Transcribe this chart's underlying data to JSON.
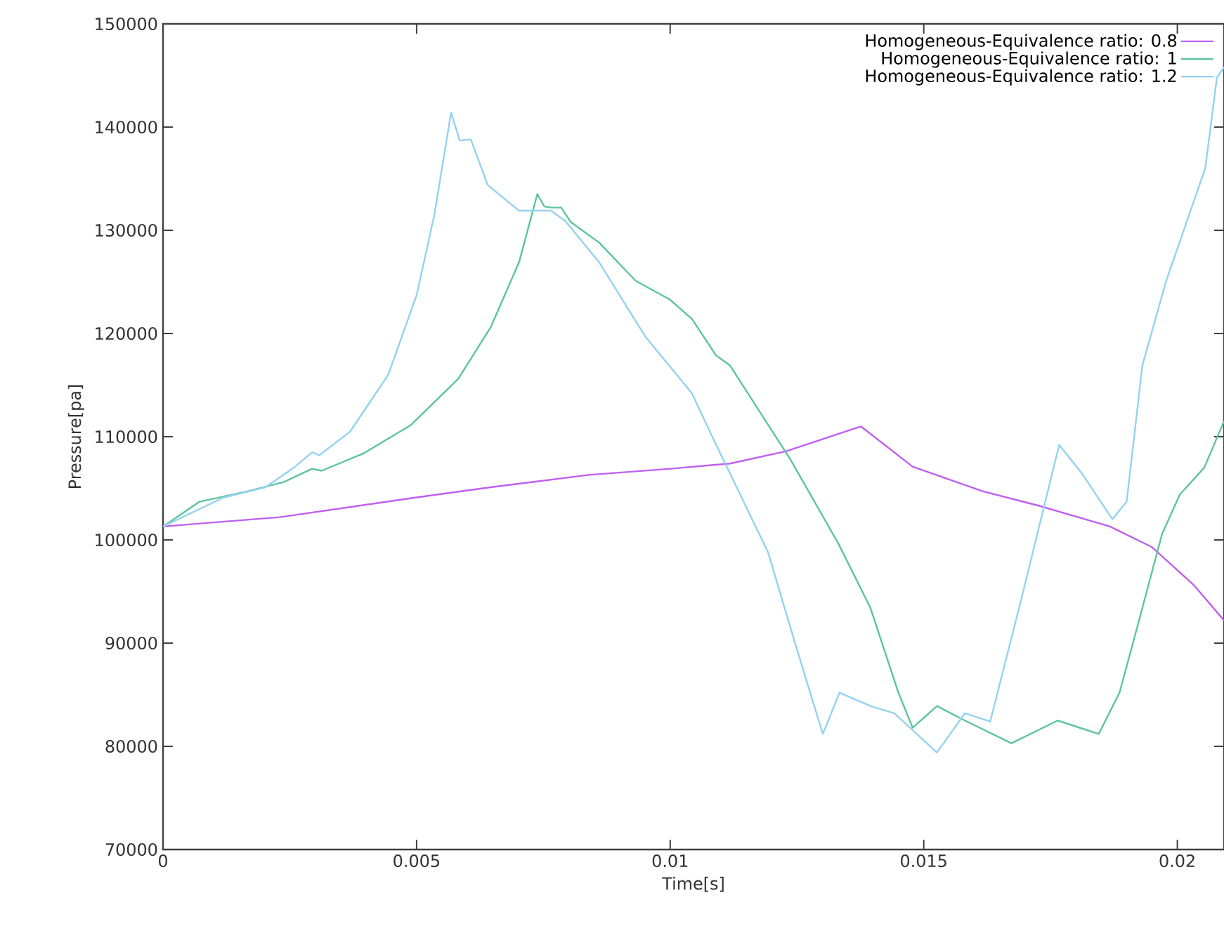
{
  "chart_data": {
    "type": "line",
    "xlabel": "Time[s]",
    "ylabel": "Pressure[pa]",
    "xlim": [
      0,
      0.02092
    ],
    "ylim": [
      70000,
      150000
    ],
    "xticks": [
      0,
      0.005,
      0.01,
      0.015,
      0.02
    ],
    "yticks": [
      70000,
      80000,
      90000,
      100000,
      110000,
      120000,
      130000,
      140000,
      150000
    ],
    "grid": false,
    "legend": "top right",
    "marker": "none",
    "line_style": "solid",
    "series": [
      {
        "name": "Homogeneous-Equivalence ratio: 0.8",
        "color": "#c05ff0",
        "x": [
          0,
          0.0023,
          0.00497,
          0.00646,
          0.0084,
          0.01001,
          0.01118,
          0.01229,
          0.01376,
          0.01478,
          0.01617,
          0.01728,
          0.01867,
          0.0195,
          0.02033,
          0.02092
        ],
        "values": [
          101300,
          102200,
          104100,
          105100,
          106300,
          106900,
          107400,
          108600,
          111000,
          107100,
          104700,
          103300,
          101300,
          99300,
          95600,
          92200
        ]
      },
      {
        "name": "Homogeneous-Equivalence ratio: 1",
        "color": "#5cc4a0",
        "x": [
          0,
          0.00072,
          0.00166,
          0.00238,
          0.00294,
          0.00313,
          0.00396,
          0.00488,
          0.00582,
          0.00646,
          0.00702,
          0.00738,
          0.00752,
          0.00766,
          0.00785,
          0.00804,
          0.0086,
          0.00932,
          0.00999,
          0.01043,
          0.0109,
          0.01118,
          0.01237,
          0.01331,
          0.01395,
          0.0145,
          0.01478,
          0.01526,
          0.01581,
          0.01673,
          0.01764,
          0.01845,
          0.01886,
          0.01931,
          0.0197,
          0.02005,
          0.02053,
          0.02092
        ],
        "values": [
          101300,
          103700,
          104700,
          105600,
          106900,
          106700,
          108400,
          111100,
          115600,
          120600,
          126900,
          133500,
          132300,
          132200,
          132200,
          130800,
          128800,
          125100,
          123300,
          121400,
          117900,
          116900,
          107800,
          99700,
          93400,
          85200,
          81800,
          83900,
          82500,
          80300,
          82500,
          81200,
          85200,
          93400,
          100600,
          104400,
          107000,
          111500
        ]
      },
      {
        "name": "Homogeneous-Equivalence ratio: 1.2",
        "color": "#94d2f0",
        "x": [
          0,
          0.00119,
          0.00202,
          0.00258,
          0.00294,
          0.00308,
          0.00369,
          0.00444,
          0.005,
          0.00535,
          0.00568,
          0.00585,
          0.00607,
          0.0064,
          0.00702,
          0.00765,
          0.00793,
          0.0086,
          0.00951,
          0.01043,
          0.01082,
          0.01193,
          0.01248,
          0.01301,
          0.01334,
          0.01395,
          0.01442,
          0.01526,
          0.01581,
          0.01631,
          0.01692,
          0.01767,
          0.01811,
          0.01872,
          0.019,
          0.01931,
          0.01978,
          0.02033,
          0.02055,
          0.02078,
          0.02092
        ],
        "values": [
          101300,
          104100,
          105100,
          107000,
          108500,
          108200,
          110500,
          116000,
          123700,
          131500,
          141400,
          138700,
          138800,
          134400,
          131900,
          131900,
          130900,
          126900,
          119700,
          114200,
          110100,
          98800,
          89700,
          81200,
          85200,
          83900,
          83200,
          79400,
          83200,
          82400,
          94200,
          109200,
          106500,
          102000,
          103700,
          116900,
          125100,
          132900,
          136000,
          144800,
          145800
        ]
      }
    ]
  }
}
